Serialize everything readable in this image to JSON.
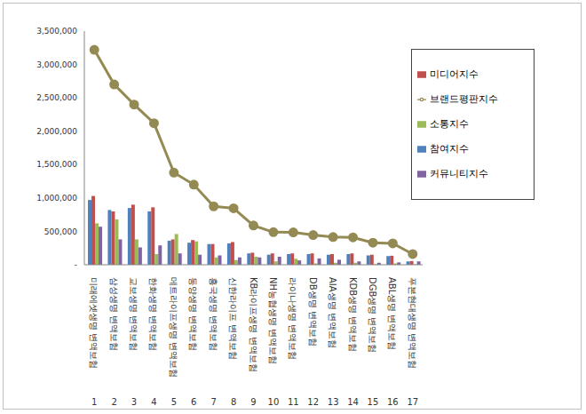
{
  "chart_data": {
    "type": "bar",
    "categories": [
      "미래에셋생명 변액보험",
      "삼성생명 변액보험",
      "교보생명 변액보험",
      "한화생명 변액보험",
      "메트라이프생명 변액보험",
      "동양생명 변액보험",
      "흥국생명 변액보험",
      "신한라이프 변액보험",
      "KB라이프생명 변액보험",
      "NH농협생명 변액보험",
      "라이나생명 변액보험",
      "DB생명 변액보험",
      "AIA생명 변액보험",
      "KDB생명 변액보험",
      "DGB생명 변액보험",
      "ABL생명 변액보험",
      "푸본현대생명 변액보험"
    ],
    "ranks": [
      1,
      2,
      3,
      4,
      5,
      6,
      7,
      8,
      9,
      10,
      11,
      12,
      13,
      14,
      15,
      16,
      17
    ],
    "series": [
      {
        "name": "참여지수",
        "type": "bar",
        "color": "#4f81bd",
        "values": [
          970000,
          820000,
          850000,
          800000,
          360000,
          330000,
          310000,
          320000,
          170000,
          150000,
          160000,
          160000,
          150000,
          160000,
          140000,
          130000,
          50000
        ]
      },
      {
        "name": "미디어지수",
        "type": "bar",
        "color": "#c0504d",
        "values": [
          1030000,
          800000,
          900000,
          860000,
          380000,
          370000,
          310000,
          340000,
          180000,
          170000,
          170000,
          170000,
          160000,
          170000,
          150000,
          135000,
          55000
        ]
      },
      {
        "name": "소통지수",
        "type": "bar",
        "color": "#9bbb59",
        "values": [
          620000,
          680000,
          380000,
          160000,
          460000,
          350000,
          110000,
          70000,
          120000,
          50000,
          90000,
          20000,
          30000,
          30000,
          10000,
          20000,
          5000
        ]
      },
      {
        "name": "커뮤니티지수",
        "type": "bar",
        "color": "#8064a2",
        "values": [
          570000,
          380000,
          260000,
          290000,
          170000,
          150000,
          140000,
          110000,
          110000,
          120000,
          65000,
          95000,
          75000,
          50000,
          30000,
          35000,
          50000
        ]
      },
      {
        "name": "브랜드평판지수",
        "type": "line",
        "color": "#948a54",
        "marker": "circle",
        "values": [
          3220000,
          2700000,
          2400000,
          2120000,
          1380000,
          1200000,
          875000,
          846000,
          588000,
          488000,
          485000,
          445000,
          415000,
          410000,
          330000,
          320000,
          160000
        ]
      }
    ],
    "ylim": [
      0,
      3500000
    ],
    "yticks": [
      {
        "value": 0,
        "label": "-"
      },
      {
        "value": 500000,
        "label": "500,000"
      },
      {
        "value": 1000000,
        "label": "1,000,000"
      },
      {
        "value": 1500000,
        "label": "1,500,000"
      },
      {
        "value": 2000000,
        "label": "2,000,000"
      },
      {
        "value": 2500000,
        "label": "2,500,000"
      },
      {
        "value": 3000000,
        "label": "3,000,000"
      },
      {
        "value": 3500000,
        "label": "3,500,000"
      }
    ],
    "grid": false,
    "legend": "upper right"
  }
}
